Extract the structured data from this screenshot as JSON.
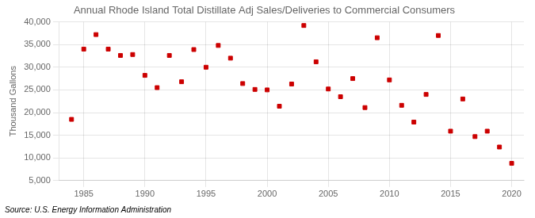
{
  "chart_data": {
    "type": "scatter",
    "title": "Annual Rhode Island Total Distillate Adj Sales/Deliveries to Commercial Consumers",
    "ylabel": "Thousand Gallons",
    "source": "Source: U.S. Energy Information Administration",
    "x": [
      1984,
      1985,
      1986,
      1987,
      1988,
      1989,
      1990,
      1991,
      1992,
      1993,
      1994,
      1995,
      1996,
      1997,
      1998,
      1999,
      2000,
      2001,
      2002,
      2003,
      2004,
      2005,
      2006,
      2007,
      2008,
      2009,
      2010,
      2011,
      2012,
      2013,
      2014,
      2015,
      2016,
      2017,
      2018,
      2019,
      2020
    ],
    "values": [
      18500,
      34000,
      37200,
      34000,
      32600,
      32800,
      28200,
      25500,
      32600,
      26800,
      33900,
      30000,
      34800,
      32000,
      26400,
      25100,
      25000,
      21400,
      26300,
      39200,
      31200,
      25200,
      23500,
      27500,
      21100,
      36500,
      27200,
      21600,
      17900,
      24000,
      37000,
      15900,
      23000,
      14700,
      15900,
      12400,
      8800
    ],
    "color": "#cc0000",
    "marker": "square",
    "grid": true,
    "xlim": [
      1983,
      2021
    ],
    "xticks": [
      1985,
      1990,
      1995,
      2000,
      2005,
      2010,
      2015,
      2020
    ],
    "ylim": [
      5000,
      40000
    ],
    "yticks": [
      {
        "value": 5000,
        "label": "5,000"
      },
      {
        "value": 10000,
        "label": "10,000"
      },
      {
        "value": 15000,
        "label": "15,000"
      },
      {
        "value": 20000,
        "label": "20,000"
      },
      {
        "value": 25000,
        "label": "25,000"
      },
      {
        "value": 30000,
        "label": "30,000"
      },
      {
        "value": 35000,
        "label": "35,000"
      },
      {
        "value": 40000,
        "label": "40,000"
      }
    ]
  }
}
